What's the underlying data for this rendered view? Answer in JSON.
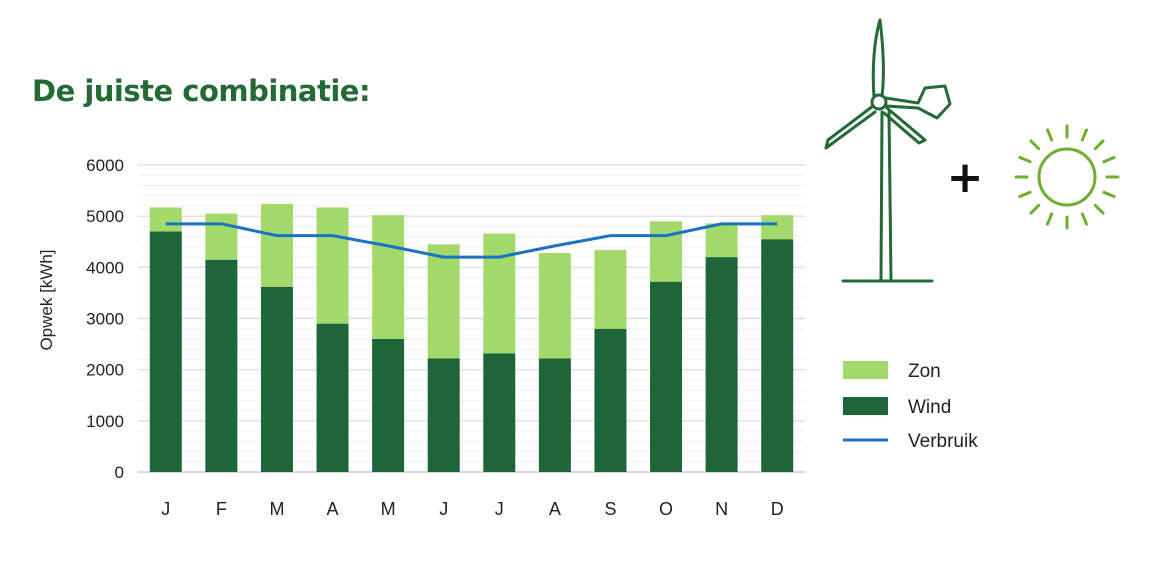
{
  "title": "De juiste combinatie:",
  "title_color": "#236a35",
  "icons": {
    "wind_turbine": "wind-turbine-icon",
    "plus": "+",
    "sun": "sun-icon",
    "turbine_color": "#236a35",
    "sun_color": "#6fae2e"
  },
  "chart_data": {
    "type": "bar",
    "stacked": true,
    "categories": [
      "J",
      "F",
      "M",
      "A",
      "M",
      "J",
      "J",
      "A",
      "S",
      "O",
      "N",
      "D"
    ],
    "series": [
      {
        "name": "Wind",
        "type": "bar",
        "color": "#1c6639",
        "values": [
          4700,
          4150,
          3620,
          2900,
          2600,
          2220,
          2320,
          2220,
          2800,
          3720,
          4200,
          4550
        ]
      },
      {
        "name": "Zon",
        "type": "bar",
        "color": "#a3d96b",
        "values": [
          470,
          900,
          1620,
          2270,
          2420,
          2230,
          2340,
          2060,
          1540,
          1180,
          660,
          470
        ]
      },
      {
        "name": "Verbruik",
        "type": "line",
        "color": "#1a72c2",
        "values": [
          4850,
          4850,
          4620,
          4620,
          4420,
          4200,
          4200,
          4420,
          4620,
          4620,
          4850,
          4850
        ]
      }
    ],
    "ylabel": "Opwek [kWh]",
    "ylim": [
      0,
      6000
    ],
    "yticks": [
      "0",
      "1000",
      "2000",
      "3000",
      "4000",
      "5000",
      "6000"
    ],
    "grid": true,
    "legend": [
      "Zon",
      "Wind",
      "Verbruik"
    ],
    "legend_position": "right"
  }
}
